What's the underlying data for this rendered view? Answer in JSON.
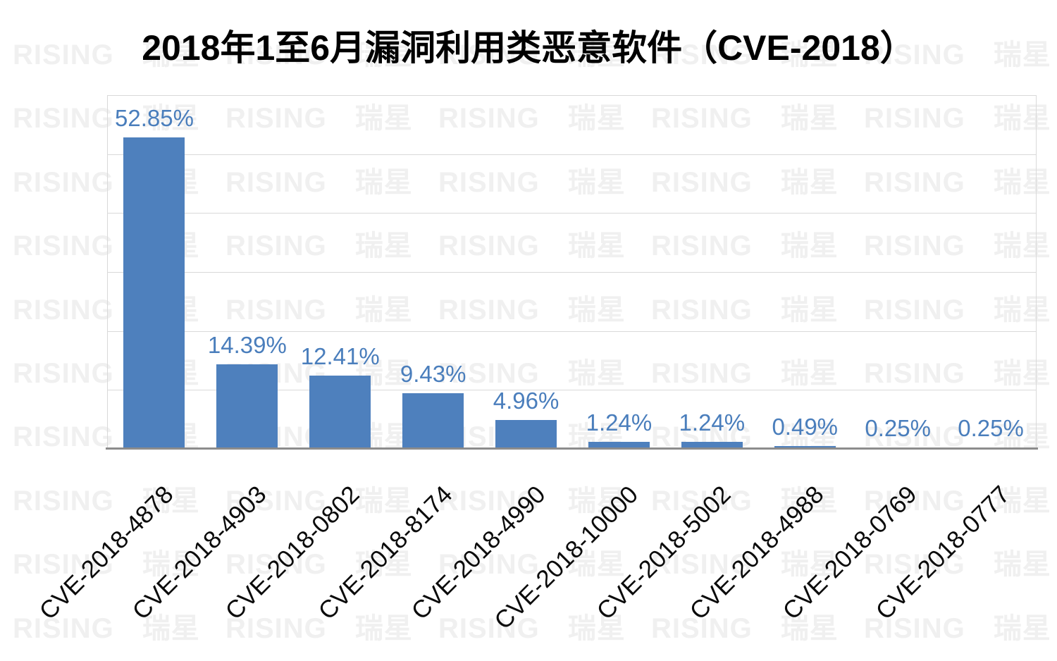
{
  "title": "2018年1至6月漏洞利用类恶意软件（CVE-2018）",
  "watermark": {
    "text": "RISING 瑞星"
  },
  "colors": {
    "bar": "#4e80bd",
    "value_label": "#4a7ebc",
    "gridline": "#d9d9d9",
    "axis_line": "#8c8c8c",
    "watermark": "#f0f0f0",
    "title_text": "#000000",
    "category_text": "#0a0a0a"
  },
  "chart_data": {
    "type": "bar",
    "title": "2018年1至6月漏洞利用类恶意软件（CVE-2018）",
    "categories": [
      "CVE-2018-4878",
      "CVE-2018-4903",
      "CVE-2018-0802",
      "CVE-2018-8174",
      "CVE-2018-4990",
      "CVE-2018-10000",
      "CVE-2018-5002",
      "CVE-2018-4988",
      "CVE-2018-0769",
      "CVE-2018-0777"
    ],
    "values": [
      52.85,
      14.39,
      12.41,
      9.43,
      4.96,
      1.24,
      1.24,
      0.49,
      0.25,
      0.25
    ],
    "value_labels": [
      "52.85%",
      "14.39%",
      "12.41%",
      "9.43%",
      "4.96%",
      "1.24%",
      "1.24%",
      "0.49%",
      "0.25%",
      "0.25%"
    ],
    "xlabel": "",
    "ylabel": "",
    "ylim": [
      0,
      60
    ],
    "gridline_step": 10,
    "grid": "horizontal",
    "legend_position": "none",
    "bar_color": "#4e80bd",
    "category_label_rotation_deg": -45
  }
}
